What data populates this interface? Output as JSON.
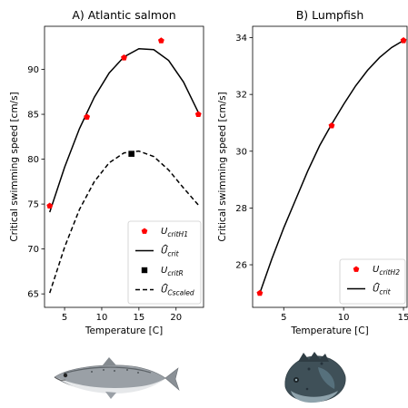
{
  "chart_data": [
    {
      "type": "scatter",
      "title": "A) Atlantic salmon",
      "xlabel": "Temperature [C]",
      "ylabel": "Critical swimming speed [cm/s]",
      "xlim": [
        2.3,
        23.7
      ],
      "ylim": [
        63.5,
        94.8
      ],
      "xticks": [
        5,
        10,
        15,
        20
      ],
      "yticks": [
        65,
        70,
        75,
        80,
        85,
        90
      ],
      "legend_position": "lower-right",
      "series": [
        {
          "name": "U_critH1",
          "kind": "points",
          "marker": "pentagon",
          "color": "#ff0000",
          "x": [
            3,
            8,
            13,
            18,
            23
          ],
          "y": [
            74.8,
            84.7,
            91.3,
            93.2,
            85.0
          ]
        },
        {
          "name": "Û_crit",
          "kind": "line",
          "style": "solid",
          "color": "#000000",
          "x": [
            3,
            5,
            7,
            9,
            11,
            13,
            15,
            17,
            19,
            21,
            23
          ],
          "y": [
            74.1,
            79.1,
            83.4,
            86.9,
            89.6,
            91.4,
            92.3,
            92.2,
            91.0,
            88.6,
            85.2
          ]
        },
        {
          "name": "U_critR",
          "kind": "points",
          "marker": "square",
          "color": "#000000",
          "x": [
            14
          ],
          "y": [
            80.6
          ]
        },
        {
          "name": "Û_Cscaled",
          "kind": "line",
          "style": "dashed",
          "color": "#000000",
          "x": [
            3,
            5,
            7,
            9,
            11,
            13,
            15,
            17,
            19,
            21,
            23
          ],
          "y": [
            65.1,
            70.2,
            74.4,
            77.5,
            79.6,
            80.7,
            80.9,
            80.3,
            78.8,
            76.8,
            74.9
          ]
        }
      ],
      "legend": [
        {
          "main": "U",
          "sub": "critH1",
          "hat": false,
          "series": 0
        },
        {
          "main": "U",
          "sub": "crit",
          "hat": true,
          "series": 1
        },
        {
          "main": "U",
          "sub": "critR",
          "hat": false,
          "series": 2
        },
        {
          "main": "U",
          "sub": "Cscaled",
          "hat": true,
          "series": 3
        }
      ]
    },
    {
      "type": "scatter",
      "title": "B) Lumpfish",
      "xlabel": "Temperature [C]",
      "ylabel": "Critical swimming speed [cm/s]",
      "xlim": [
        2.4,
        15.3
      ],
      "ylim": [
        24.5,
        34.4
      ],
      "xticks": [
        5,
        10,
        15
      ],
      "yticks": [
        26,
        28,
        30,
        32,
        34
      ],
      "legend_position": "lower-right",
      "series": [
        {
          "name": "U_critH2",
          "kind": "points",
          "marker": "pentagon",
          "color": "#ff0000",
          "x": [
            3,
            9,
            15
          ],
          "y": [
            25.0,
            30.9,
            33.9
          ]
        },
        {
          "name": "Û_crit",
          "kind": "line",
          "style": "solid",
          "color": "#000000",
          "x": [
            3,
            4,
            5,
            6,
            7,
            8,
            9,
            10,
            11,
            12,
            13,
            14,
            15
          ],
          "y": [
            25.0,
            26.2,
            27.3,
            28.3,
            29.3,
            30.2,
            30.95,
            31.65,
            32.3,
            32.85,
            33.3,
            33.65,
            33.9
          ]
        }
      ],
      "legend": [
        {
          "main": "U",
          "sub": "critH2",
          "hat": false,
          "series": 0
        },
        {
          "main": "U",
          "sub": "crit",
          "hat": true,
          "series": 1
        }
      ]
    }
  ]
}
